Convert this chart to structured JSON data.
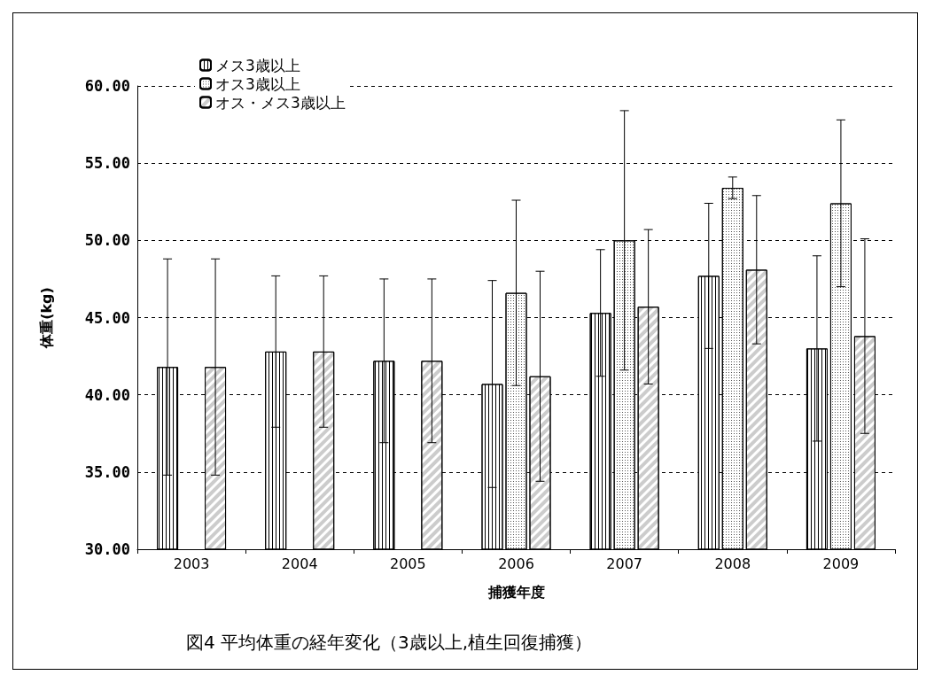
{
  "chart_data": {
    "type": "bar",
    "title": "図4 平均体重の経年変化（3歳以上,植生回復捕獲）",
    "xlabel": "捕獲年度",
    "ylabel": "体重(kg)",
    "categories": [
      "2003",
      "2004",
      "2005",
      "2006",
      "2007",
      "2008",
      "2009"
    ],
    "series": [
      {
        "name": "メス3歳以上",
        "color": "#ffffff",
        "values": [
          41.8,
          42.8,
          42.2,
          40.7,
          45.3,
          47.7,
          43.0
        ],
        "errors": [
          7.0,
          4.9,
          5.3,
          6.7,
          4.1,
          4.7,
          6.0
        ]
      },
      {
        "name": "オス3歳以上",
        "color": "#ffffff",
        "values": [
          null,
          null,
          null,
          46.6,
          50.0,
          53.4,
          52.4
        ],
        "errors": [
          null,
          null,
          null,
          6.0,
          8.4,
          0.7,
          5.4
        ]
      },
      {
        "name": "オス・メス3歳以上",
        "color": "#ffffff",
        "values": [
          41.8,
          42.8,
          42.2,
          41.2,
          45.7,
          48.1,
          43.8
        ],
        "errors": [
          7.0,
          4.9,
          5.3,
          6.8,
          5.0,
          4.8,
          6.3
        ]
      }
    ],
    "ylim": [
      30,
      60
    ],
    "yticks": [
      {
        "value": 30,
        "label": "30.00"
      },
      {
        "value": 35,
        "label": "35.00"
      },
      {
        "value": 40,
        "label": "40.00"
      },
      {
        "value": 45,
        "label": "45.00"
      },
      {
        "value": 50,
        "label": "50.00"
      },
      {
        "value": 55,
        "label": "55.00"
      },
      {
        "value": 60,
        "label": "60.00"
      }
    ],
    "grid": "y",
    "legend": "top left"
  }
}
